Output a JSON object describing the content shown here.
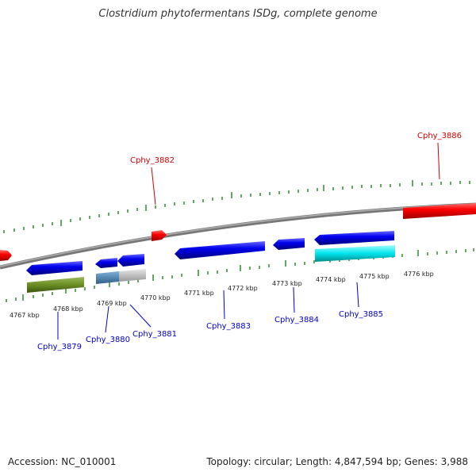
{
  "title": "Clostridium phytofermentans ISDg, complete genome",
  "accession": "Accession: NC_010001",
  "topology": "Topology: circular; Length: 4,847,594 bp; Genes: 3,988",
  "colors": {
    "forward_gene": "#ff0000",
    "reverse_gene": "#0000ff",
    "backbone": "#777777",
    "tick": "#2e8b2e",
    "label_forward": "#cc0000",
    "label_reverse": "#0000cc",
    "feature_green": "#6b8e23",
    "feature_cyan": "#00e5ee",
    "feature_steel": "#4682b4",
    "feature_gray": "#c0c0c0"
  },
  "kbp_labels": [
    "4767 kbp",
    "4768 kbp",
    "4769 kbp",
    "4770 kbp",
    "4771 kbp",
    "4772 kbp",
    "4773 kbp",
    "4774 kbp",
    "4775 kbp",
    "4776 kbp"
  ],
  "gene_labels": {
    "g3879": "Cphy_3879",
    "g3880": "Cphy_3880",
    "g3881": "Cphy_3881",
    "g3882": "Cphy_3882",
    "g3883": "Cphy_3883",
    "g3884": "Cphy_3884",
    "g3885": "Cphy_3885",
    "g3886": "Cphy_3886"
  }
}
